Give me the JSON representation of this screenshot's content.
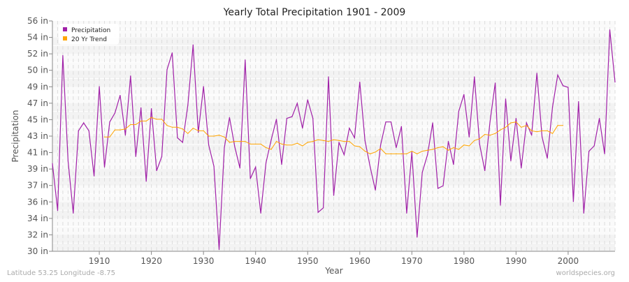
{
  "chart_data": {
    "type": "line",
    "title": "Yearly Total Precipitation 1901 - 2009",
    "xlabel": "Year",
    "ylabel": "Precipitation",
    "xlim": [
      1901,
      2009
    ],
    "ylim": [
      30,
      56
    ],
    "x_ticks": [
      1910,
      1920,
      1930,
      1940,
      1950,
      1960,
      1970,
      1980,
      1990,
      2000
    ],
    "y_ticks": [
      {
        "value": 30,
        "label": "30 in"
      },
      {
        "value": 31.857,
        "label": "32 in"
      },
      {
        "value": 33.714,
        "label": "34 in"
      },
      {
        "value": 35.571,
        "label": "36 in"
      },
      {
        "value": 37.429,
        "label": "37 in"
      },
      {
        "value": 39.286,
        "label": "39 in"
      },
      {
        "value": 41.143,
        "label": "41 in"
      },
      {
        "value": 43,
        "label": "43 in"
      },
      {
        "value": 44.857,
        "label": "45 in"
      },
      {
        "value": 46.714,
        "label": "47 in"
      },
      {
        "value": 48.571,
        "label": "49 in"
      },
      {
        "value": 50.429,
        "label": "50 in"
      },
      {
        "value": 52.286,
        "label": "52 in"
      },
      {
        "value": 54.143,
        "label": "54 in"
      },
      {
        "value": 56,
        "label": "56 in"
      }
    ],
    "grid": true,
    "legend_placement": "top-left",
    "series": [
      {
        "name": "Precipitation",
        "color": "#a020a8",
        "x_start": 1901,
        "values": [
          39.9,
          34.6,
          52.1,
          40.2,
          34.3,
          43.6,
          44.5,
          43.6,
          38.5,
          48.6,
          39.5,
          44.6,
          45.6,
          47.6,
          43.1,
          49.8,
          40.7,
          46.2,
          37.9,
          46.1,
          39.1,
          40.7,
          50.5,
          52.4,
          42.8,
          42.3,
          46.5,
          53.3,
          43.4,
          48.6,
          42.0,
          39.6,
          30.2,
          41.7,
          45.1,
          41.8,
          39.4,
          51.6,
          38.2,
          39.5,
          34.3,
          40.0,
          42.6,
          44.9,
          39.8,
          45.0,
          45.2,
          46.7,
          43.9,
          47.1,
          45.0,
          34.4,
          34.9,
          49.7,
          36.3,
          42.3,
          40.9,
          43.9,
          42.8,
          49.1,
          42.5,
          39.5,
          36.9,
          42.0,
          44.6,
          44.6,
          41.7,
          44.1,
          34.3,
          41.2,
          31.6,
          38.9,
          40.9,
          44.5,
          37.1,
          37.4,
          42.4,
          39.8,
          45.8,
          47.7,
          42.9,
          49.7,
          42.1,
          39.1,
          44.6,
          49.0,
          35.2,
          47.2,
          40.2,
          45.0,
          39.4,
          44.5,
          43.1,
          50.1,
          42.9,
          40.5,
          46.3,
          49.9,
          48.7,
          48.5,
          35.6,
          46.9,
          34.3,
          41.3,
          41.9,
          45.0,
          41.0,
          55.0,
          49.1
        ]
      },
      {
        "name": "20 Yr Trend",
        "color": "#ffa500",
        "x_start": 1911,
        "values": [
          42.9,
          42.9,
          43.7,
          43.7,
          43.8,
          44.3,
          44.3,
          44.7,
          44.7,
          45.1,
          44.9,
          44.9,
          44.2,
          44.0,
          44.0,
          43.8,
          43.3,
          43.9,
          43.6,
          43.6,
          43.0,
          43.0,
          43.1,
          42.9,
          42.3,
          42.4,
          42.4,
          42.4,
          42.1,
          42.1,
          42.1,
          41.7,
          41.5,
          42.4,
          42.1,
          42.0,
          42.0,
          42.2,
          41.9,
          42.3,
          42.4,
          42.6,
          42.5,
          42.4,
          42.6,
          42.5,
          42.4,
          42.4,
          41.9,
          41.8,
          41.3,
          41.0,
          41.2,
          41.6,
          41.0,
          41.0,
          41.0,
          41.0,
          41.0,
          41.3,
          41.0,
          41.3,
          41.4,
          41.5,
          41.7,
          41.8,
          41.4,
          41.7,
          41.5,
          42.0,
          41.9,
          42.5,
          42.7,
          43.2,
          43.1,
          43.3,
          43.7,
          44.0,
          44.5,
          44.6,
          44.0,
          44.2,
          43.6,
          43.5,
          43.6,
          43.6,
          43.3,
          44.2,
          44.2
        ]
      }
    ]
  },
  "footer": {
    "location": "Latitude 53.25 Longitude -8.75",
    "source": "worldspecies.org"
  }
}
